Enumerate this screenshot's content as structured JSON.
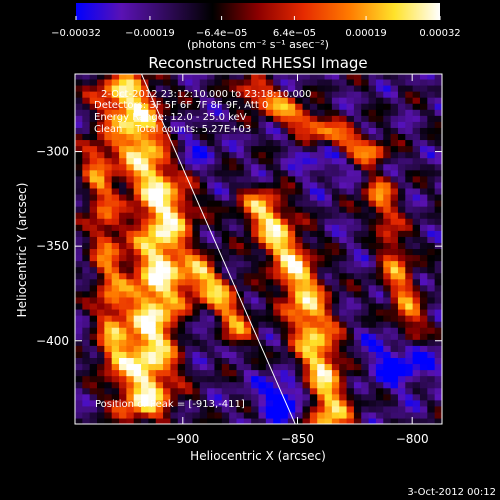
{
  "chart_data": {
    "type": "heatmap",
    "title": "Reconstructed RHESSI Image",
    "xlabel": "Heliocentric X (arcsec)",
    "ylabel": "Heliocentric Y (arcsec)",
    "xlim": [
      -947,
      -787
    ],
    "ylim": [
      -444,
      -259
    ],
    "xticks": [
      -900,
      -850,
      -800
    ],
    "xtick_labels": [
      "−900",
      "−850",
      "−800"
    ],
    "yticks": [
      -300,
      -350,
      -400
    ],
    "ytick_labels": [
      "−300",
      "−350",
      "−400"
    ],
    "colorbar": {
      "range": [
        -0.00032,
        0.00032
      ],
      "tick_values": [
        -0.00032,
        -0.00019,
        -6.4e-05,
        6.4e-05,
        0.00019,
        0.00032
      ],
      "tick_labels": [
        "−0.00032",
        "−0.00019",
        "−6.4e−05",
        "6.4e−05",
        "0.00019",
        "0.00032"
      ],
      "unit_label": "(photons cm⁻² s⁻¹ asec⁻²)",
      "colors": [
        "#0000ff",
        "#5a12b4",
        "#300a5a",
        "#000000",
        "#8c0000",
        "#e62a00",
        "#ff7a00",
        "#ffe22a",
        "#ffffff"
      ]
    },
    "info_lines": [
      "2-Oct-2012 23:12:10.000 to 23:18:10.000",
      "Detectors: 3F 5F 6F 7F 8F 9F, Att 0",
      "Energy Range: 12.0 - 25.0 keV",
      "Clean    Total counts: 5.27E+03"
    ],
    "peak_label": "Position of Peak = [-913,-411]",
    "peak": [
      -913,
      -411
    ],
    "limb_line": [
      [
        -918,
        -259
      ],
      [
        -851,
        -444
      ]
    ],
    "bright_ridges": [
      {
        "x": [
          -925,
          -908,
          -912,
          -917
        ],
        "y": [
          -270,
          -330,
          -380,
          -430
        ],
        "width": 9,
        "level": 0.00028
      },
      {
        "x": [
          -865,
          -850,
          -842,
          -836
        ],
        "y": [
          -330,
          -365,
          -400,
          -440
        ],
        "width": 7,
        "level": 0.00024
      },
      {
        "x": [
          -892,
          -883,
          -878
        ],
        "y": [
          -365,
          -380,
          -395
        ],
        "width": 6,
        "level": 0.0002
      },
      {
        "x": [
          -870,
          -858,
          -840,
          -818
        ],
        "y": [
          -268,
          -276,
          -288,
          -300
        ],
        "width": 5,
        "level": 0.00016
      },
      {
        "x": [
          -815,
          -808,
          -800
        ],
        "y": [
          -320,
          -355,
          -395
        ],
        "width": 5,
        "level": 0.00013
      },
      {
        "x": [
          -938,
          -933,
          -930
        ],
        "y": [
          -300,
          -350,
          -410
        ],
        "width": 5,
        "level": 0.0001
      }
    ],
    "dim_lobes": [
      {
        "x": -900,
        "y": -300,
        "r": 9,
        "level": -0.00019
      },
      {
        "x": -888,
        "y": -395,
        "r": 8,
        "level": -0.00022
      },
      {
        "x": -838,
        "y": -305,
        "r": 8,
        "level": -0.00017
      },
      {
        "x": -805,
        "y": -410,
        "r": 11,
        "level": -0.00024
      },
      {
        "x": -855,
        "y": -430,
        "r": 8,
        "level": -0.00032
      },
      {
        "x": -815,
        "y": -345,
        "r": 7,
        "level": -0.00015
      }
    ],
    "grid": false
  },
  "footer_date": "3-Oct-2012 00:12"
}
